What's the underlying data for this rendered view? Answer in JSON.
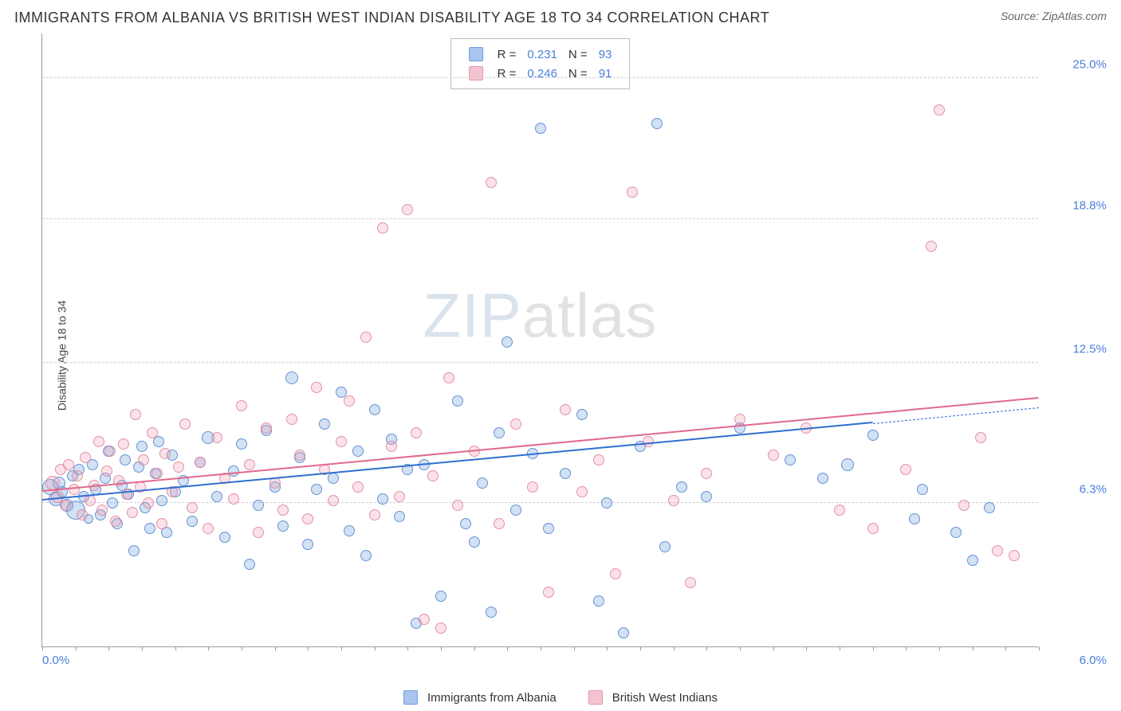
{
  "title": "IMMIGRANTS FROM ALBANIA VS BRITISH WEST INDIAN DISABILITY AGE 18 TO 34 CORRELATION CHART",
  "source": "Source: ZipAtlas.com",
  "ylabel": "Disability Age 18 to 34",
  "watermark_bold": "ZIP",
  "watermark_thin": "atlas",
  "chart": {
    "type": "scatter",
    "xlim": [
      0.0,
      6.0
    ],
    "ylim": [
      0.0,
      27.0
    ],
    "xticks": [
      {
        "v": 0.0,
        "l": "0.0%"
      },
      {
        "v": 6.0,
        "l": "6.0%"
      }
    ],
    "yticks": [
      {
        "v": 6.3,
        "l": "6.3%"
      },
      {
        "v": 12.5,
        "l": "12.5%"
      },
      {
        "v": 18.8,
        "l": "18.8%"
      },
      {
        "v": 25.0,
        "l": "25.0%"
      }
    ],
    "background_color": "#ffffff",
    "grid_color": "#d0d0d0",
    "axis_color": "#999999",
    "tick_label_color": "#4a7fd8",
    "marker_base_size": 14,
    "series": [
      {
        "name": "Immigrants from Albania",
        "color_fill": "rgba(127,168,224,0.35)",
        "color_stroke": "rgba(90,140,210,0.9)",
        "swatch_fill": "#a9c5ed",
        "swatch_stroke": "#6e9fe0",
        "R": "0.231",
        "N": "93",
        "trend": {
          "x0": 0.0,
          "y0": 6.4,
          "x1": 5.0,
          "y1": 9.8,
          "color": "#2f6fd0",
          "dash_to_x": 6.0,
          "dash_to_y": 10.5
        },
        "points": [
          [
            0.05,
            7.0,
            20
          ],
          [
            0.08,
            6.5,
            18
          ],
          [
            0.1,
            7.2,
            16
          ],
          [
            0.12,
            6.8,
            14
          ],
          [
            0.15,
            6.2,
            16
          ],
          [
            0.18,
            7.5,
            14
          ],
          [
            0.2,
            6.0,
            24
          ],
          [
            0.22,
            7.8,
            14
          ],
          [
            0.25,
            6.6,
            14
          ],
          [
            0.28,
            5.6,
            12
          ],
          [
            0.3,
            8.0,
            14
          ],
          [
            0.32,
            6.9,
            14
          ],
          [
            0.35,
            5.8,
            14
          ],
          [
            0.38,
            7.4,
            14
          ],
          [
            0.4,
            8.6,
            14
          ],
          [
            0.42,
            6.3,
            14
          ],
          [
            0.45,
            5.4,
            14
          ],
          [
            0.48,
            7.1,
            14
          ],
          [
            0.5,
            8.2,
            14
          ],
          [
            0.52,
            6.7,
            14
          ],
          [
            0.55,
            4.2,
            14
          ],
          [
            0.58,
            7.9,
            14
          ],
          [
            0.6,
            8.8,
            14
          ],
          [
            0.62,
            6.1,
            14
          ],
          [
            0.65,
            5.2,
            14
          ],
          [
            0.68,
            7.6,
            14
          ],
          [
            0.7,
            9.0,
            14
          ],
          [
            0.72,
            6.4,
            14
          ],
          [
            0.75,
            5.0,
            14
          ],
          [
            0.78,
            8.4,
            14
          ],
          [
            0.8,
            6.8,
            14
          ],
          [
            0.85,
            7.3,
            14
          ],
          [
            0.9,
            5.5,
            14
          ],
          [
            0.95,
            8.1,
            14
          ],
          [
            1.0,
            9.2,
            16
          ],
          [
            1.05,
            6.6,
            14
          ],
          [
            1.1,
            4.8,
            14
          ],
          [
            1.15,
            7.7,
            14
          ],
          [
            1.2,
            8.9,
            14
          ],
          [
            1.25,
            3.6,
            14
          ],
          [
            1.3,
            6.2,
            14
          ],
          [
            1.35,
            9.5,
            14
          ],
          [
            1.4,
            7.0,
            14
          ],
          [
            1.45,
            5.3,
            14
          ],
          [
            1.5,
            11.8,
            16
          ],
          [
            1.55,
            8.3,
            14
          ],
          [
            1.6,
            4.5,
            14
          ],
          [
            1.65,
            6.9,
            14
          ],
          [
            1.7,
            9.8,
            14
          ],
          [
            1.75,
            7.4,
            14
          ],
          [
            1.8,
            11.2,
            14
          ],
          [
            1.85,
            5.1,
            14
          ],
          [
            1.9,
            8.6,
            14
          ],
          [
            1.95,
            4.0,
            14
          ],
          [
            2.0,
            10.4,
            14
          ],
          [
            2.05,
            6.5,
            14
          ],
          [
            2.1,
            9.1,
            14
          ],
          [
            2.15,
            5.7,
            14
          ],
          [
            2.2,
            7.8,
            14
          ],
          [
            2.25,
            1.0,
            14
          ],
          [
            2.3,
            8.0,
            14
          ],
          [
            2.4,
            2.2,
            14
          ],
          [
            2.5,
            10.8,
            14
          ],
          [
            2.55,
            5.4,
            14
          ],
          [
            2.6,
            4.6,
            14
          ],
          [
            2.65,
            7.2,
            14
          ],
          [
            2.75,
            9.4,
            14
          ],
          [
            2.8,
            13.4,
            14
          ],
          [
            2.85,
            6.0,
            14
          ],
          [
            2.95,
            8.5,
            14
          ],
          [
            3.0,
            22.8,
            14
          ],
          [
            3.05,
            5.2,
            14
          ],
          [
            3.15,
            7.6,
            14
          ],
          [
            3.25,
            10.2,
            14
          ],
          [
            3.35,
            2.0,
            14
          ],
          [
            3.4,
            6.3,
            14
          ],
          [
            3.5,
            0.6,
            14
          ],
          [
            3.6,
            8.8,
            14
          ],
          [
            3.7,
            23.0,
            14
          ],
          [
            3.75,
            4.4,
            14
          ],
          [
            3.85,
            7.0,
            14
          ],
          [
            4.0,
            6.6,
            14
          ],
          [
            4.2,
            9.6,
            14
          ],
          [
            4.5,
            8.2,
            14
          ],
          [
            4.7,
            7.4,
            14
          ],
          [
            4.85,
            8.0,
            16
          ],
          [
            5.0,
            9.3,
            14
          ],
          [
            5.3,
            6.9,
            14
          ],
          [
            5.5,
            5.0,
            14
          ],
          [
            5.6,
            3.8,
            14
          ],
          [
            5.7,
            6.1,
            14
          ],
          [
            5.25,
            5.6,
            14
          ],
          [
            2.7,
            1.5,
            14
          ]
        ]
      },
      {
        "name": "British West Indians",
        "color_fill": "rgba(240,160,180,0.3)",
        "color_stroke": "rgba(225,130,155,0.85)",
        "swatch_fill": "#f3c4d0",
        "swatch_stroke": "#e795ab",
        "R": "0.246",
        "N": "91",
        "trend": {
          "x0": 0.0,
          "y0": 6.8,
          "x1": 6.0,
          "y1": 10.9,
          "color": "#e06a8c"
        },
        "points": [
          [
            0.06,
            7.2,
            18
          ],
          [
            0.09,
            6.6,
            16
          ],
          [
            0.11,
            7.8,
            14
          ],
          [
            0.14,
            6.2,
            14
          ],
          [
            0.16,
            8.0,
            14
          ],
          [
            0.19,
            6.9,
            14
          ],
          [
            0.21,
            7.5,
            14
          ],
          [
            0.24,
            5.8,
            14
          ],
          [
            0.26,
            8.3,
            14
          ],
          [
            0.29,
            6.4,
            14
          ],
          [
            0.31,
            7.1,
            14
          ],
          [
            0.34,
            9.0,
            14
          ],
          [
            0.36,
            6.0,
            14
          ],
          [
            0.39,
            7.7,
            14
          ],
          [
            0.41,
            8.6,
            14
          ],
          [
            0.44,
            5.5,
            14
          ],
          [
            0.46,
            7.3,
            14
          ],
          [
            0.49,
            8.9,
            14
          ],
          [
            0.51,
            6.7,
            14
          ],
          [
            0.54,
            5.9,
            14
          ],
          [
            0.56,
            10.2,
            14
          ],
          [
            0.59,
            7.0,
            14
          ],
          [
            0.61,
            8.2,
            14
          ],
          [
            0.64,
            6.3,
            14
          ],
          [
            0.66,
            9.4,
            14
          ],
          [
            0.69,
            7.6,
            14
          ],
          [
            0.72,
            5.4,
            14
          ],
          [
            0.74,
            8.5,
            14
          ],
          [
            0.78,
            6.8,
            14
          ],
          [
            0.82,
            7.9,
            14
          ],
          [
            0.86,
            9.8,
            14
          ],
          [
            0.9,
            6.1,
            14
          ],
          [
            0.95,
            8.1,
            14
          ],
          [
            1.0,
            5.2,
            14
          ],
          [
            1.05,
            9.2,
            14
          ],
          [
            1.1,
            7.4,
            14
          ],
          [
            1.15,
            6.5,
            14
          ],
          [
            1.2,
            10.6,
            14
          ],
          [
            1.25,
            8.0,
            14
          ],
          [
            1.3,
            5.0,
            14
          ],
          [
            1.35,
            9.6,
            14
          ],
          [
            1.4,
            7.2,
            14
          ],
          [
            1.45,
            6.0,
            14
          ],
          [
            1.5,
            10.0,
            14
          ],
          [
            1.55,
            8.4,
            14
          ],
          [
            1.6,
            5.6,
            14
          ],
          [
            1.65,
            11.4,
            14
          ],
          [
            1.7,
            7.8,
            14
          ],
          [
            1.75,
            6.4,
            14
          ],
          [
            1.8,
            9.0,
            14
          ],
          [
            1.85,
            10.8,
            14
          ],
          [
            1.9,
            7.0,
            14
          ],
          [
            1.95,
            13.6,
            14
          ],
          [
            2.0,
            5.8,
            14
          ],
          [
            2.05,
            18.4,
            14
          ],
          [
            2.1,
            8.8,
            14
          ],
          [
            2.15,
            6.6,
            14
          ],
          [
            2.2,
            19.2,
            14
          ],
          [
            2.25,
            9.4,
            14
          ],
          [
            2.3,
            1.2,
            14
          ],
          [
            2.35,
            7.5,
            14
          ],
          [
            2.4,
            0.8,
            14
          ],
          [
            2.45,
            11.8,
            14
          ],
          [
            2.5,
            6.2,
            14
          ],
          [
            2.6,
            8.6,
            14
          ],
          [
            2.7,
            20.4,
            14
          ],
          [
            2.75,
            5.4,
            14
          ],
          [
            2.85,
            9.8,
            14
          ],
          [
            2.95,
            7.0,
            14
          ],
          [
            3.05,
            2.4,
            14
          ],
          [
            3.15,
            10.4,
            14
          ],
          [
            3.25,
            6.8,
            14
          ],
          [
            3.35,
            8.2,
            14
          ],
          [
            3.45,
            3.2,
            14
          ],
          [
            3.55,
            20.0,
            14
          ],
          [
            3.65,
            9.0,
            14
          ],
          [
            3.8,
            6.4,
            14
          ],
          [
            4.0,
            7.6,
            14
          ],
          [
            4.2,
            10.0,
            14
          ],
          [
            4.4,
            8.4,
            14
          ],
          [
            4.6,
            9.6,
            14
          ],
          [
            4.8,
            6.0,
            14
          ],
          [
            5.0,
            5.2,
            14
          ],
          [
            5.2,
            7.8,
            14
          ],
          [
            5.35,
            17.6,
            14
          ],
          [
            5.4,
            23.6,
            14
          ],
          [
            5.55,
            6.2,
            14
          ],
          [
            5.65,
            9.2,
            14
          ],
          [
            5.75,
            4.2,
            14
          ],
          [
            5.85,
            4.0,
            14
          ],
          [
            3.9,
            2.8,
            14
          ]
        ]
      }
    ]
  },
  "legend_top": {
    "rows": [
      {
        "swatch_fill": "#a9c5ed",
        "swatch_stroke": "#6e9fe0",
        "R": "0.231",
        "N": "93"
      },
      {
        "swatch_fill": "#f3c4d0",
        "swatch_stroke": "#e795ab",
        "R": "0.246",
        "N": "91"
      }
    ],
    "R_label": "R  =",
    "N_label": "N  ="
  },
  "legend_bottom": [
    {
      "swatch_fill": "#a9c5ed",
      "swatch_stroke": "#6e9fe0",
      "label": "Immigrants from Albania"
    },
    {
      "swatch_fill": "#f3c4d0",
      "swatch_stroke": "#e795ab",
      "label": "British West Indians"
    }
  ]
}
